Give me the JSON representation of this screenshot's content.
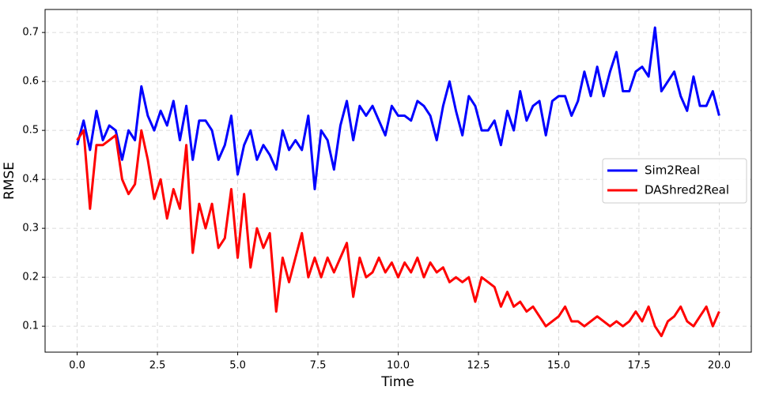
{
  "chart_data": {
    "type": "line",
    "xlabel": "Time",
    "ylabel": "RMSE",
    "x": [
      0,
      0.2,
      0.4,
      0.6,
      0.8,
      1,
      1.2,
      1.4,
      1.6,
      1.8,
      2,
      2.2,
      2.4,
      2.6,
      2.8,
      3,
      3.2,
      3.4,
      3.6,
      3.8,
      4,
      4.2,
      4.4,
      4.6,
      4.8,
      5,
      5.2,
      5.4,
      5.6,
      5.8,
      6,
      6.2,
      6.4,
      6.6,
      6.8,
      7,
      7.2,
      7.4,
      7.6,
      7.8,
      8,
      8.2,
      8.4,
      8.6,
      8.8,
      9,
      9.2,
      9.4,
      9.6,
      9.8,
      10,
      10.2,
      10.4,
      10.6,
      10.8,
      11,
      11.2,
      11.4,
      11.6,
      11.8,
      12,
      12.2,
      12.4,
      12.6,
      12.8,
      13,
      13.2,
      13.4,
      13.6,
      13.8,
      14,
      14.2,
      14.4,
      14.6,
      14.8,
      15,
      15.2,
      15.4,
      15.6,
      15.8,
      16,
      16.2,
      16.4,
      16.6,
      16.8,
      17,
      17.2,
      17.4,
      17.6,
      17.8,
      18,
      18.2,
      18.4,
      18.6,
      18.8,
      19,
      19.2,
      19.4,
      19.6,
      19.8,
      20
    ],
    "series": [
      {
        "name": "Sim2Real",
        "color": "#0000ff",
        "values": [
          0.47,
          0.52,
          0.46,
          0.54,
          0.48,
          0.51,
          0.5,
          0.44,
          0.5,
          0.48,
          0.59,
          0.53,
          0.5,
          0.54,
          0.51,
          0.56,
          0.48,
          0.55,
          0.44,
          0.52,
          0.52,
          0.5,
          0.44,
          0.47,
          0.53,
          0.41,
          0.47,
          0.5,
          0.44,
          0.47,
          0.45,
          0.42,
          0.5,
          0.46,
          0.48,
          0.46,
          0.53,
          0.38,
          0.5,
          0.48,
          0.42,
          0.51,
          0.56,
          0.48,
          0.55,
          0.53,
          0.55,
          0.52,
          0.49,
          0.55,
          0.53,
          0.53,
          0.52,
          0.56,
          0.55,
          0.53,
          0.48,
          0.55,
          0.6,
          0.54,
          0.49,
          0.57,
          0.55,
          0.5,
          0.5,
          0.52,
          0.47,
          0.54,
          0.5,
          0.58,
          0.52,
          0.55,
          0.56,
          0.49,
          0.56,
          0.57,
          0.57,
          0.53,
          0.56,
          0.62,
          0.57,
          0.63,
          0.57,
          0.62,
          0.66,
          0.58,
          0.58,
          0.62,
          0.63,
          0.61,
          0.71,
          0.58,
          0.6,
          0.62,
          0.57,
          0.54,
          0.61,
          0.55,
          0.55,
          0.58,
          0.53
        ]
      },
      {
        "name": "DAShred2Real",
        "color": "#ff0000",
        "values": [
          0.48,
          0.5,
          0.34,
          0.47,
          0.47,
          0.48,
          0.49,
          0.4,
          0.37,
          0.39,
          0.5,
          0.44,
          0.36,
          0.4,
          0.32,
          0.38,
          0.34,
          0.47,
          0.25,
          0.35,
          0.3,
          0.35,
          0.26,
          0.28,
          0.38,
          0.24,
          0.37,
          0.22,
          0.3,
          0.26,
          0.29,
          0.13,
          0.24,
          0.19,
          0.24,
          0.29,
          0.2,
          0.24,
          0.2,
          0.24,
          0.21,
          0.24,
          0.27,
          0.16,
          0.24,
          0.2,
          0.21,
          0.24,
          0.21,
          0.23,
          0.2,
          0.23,
          0.21,
          0.24,
          0.2,
          0.23,
          0.21,
          0.22,
          0.19,
          0.2,
          0.19,
          0.2,
          0.15,
          0.2,
          0.19,
          0.18,
          0.14,
          0.17,
          0.14,
          0.15,
          0.13,
          0.14,
          0.12,
          0.1,
          0.11,
          0.12,
          0.14,
          0.11,
          0.11,
          0.1,
          0.11,
          0.12,
          0.11,
          0.1,
          0.11,
          0.1,
          0.11,
          0.13,
          0.11,
          0.14,
          0.1,
          0.08,
          0.11,
          0.12,
          0.14,
          0.11,
          0.1,
          0.12,
          0.14,
          0.1,
          0.13
        ]
      }
    ],
    "xlim": [
      -1,
      21
    ],
    "ylim": [
      0.047,
      0.747
    ],
    "xticks": [
      {
        "value": 0,
        "label": "0.0"
      },
      2.5,
      {
        "value": 5,
        "label": "5.0"
      },
      7.5,
      {
        "value": 10,
        "label": "10.0"
      },
      12.5,
      {
        "value": 15,
        "label": "15.0"
      },
      17.5,
      {
        "value": 20,
        "label": "20.0"
      }
    ],
    "yticks": [
      0.1,
      0.2,
      0.3,
      0.4,
      0.5,
      0.6,
      0.7
    ],
    "grid": true,
    "legend": "center right"
  }
}
